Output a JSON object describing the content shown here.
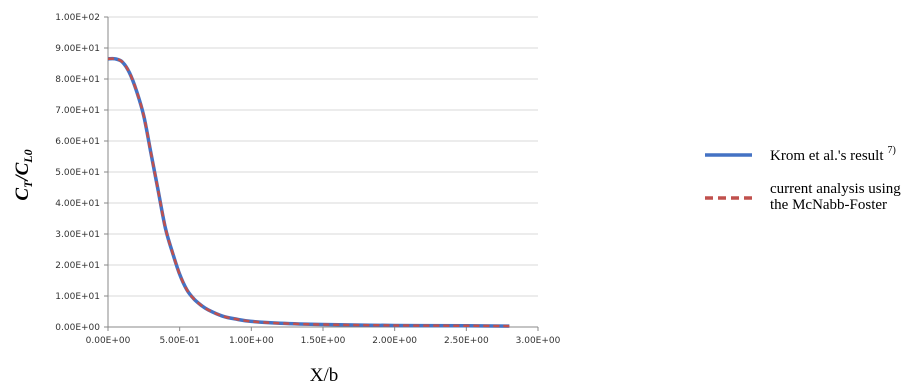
{
  "chart_data": {
    "type": "line",
    "xlabel": "X/b",
    "ylabel": "C_T/C_L0",
    "ylabel_parts": {
      "main": "C",
      "sub1": "T",
      "slash": "/C",
      "sub2": "L0"
    },
    "xlim": [
      0,
      3.0
    ],
    "ylim": [
      0,
      100
    ],
    "x_ticks": [
      0,
      0.5,
      1.0,
      1.5,
      2.0,
      2.5,
      3.0
    ],
    "x_tick_labels": [
      "0.00E+00",
      "5.00E-01",
      "1.00E+00",
      "1.50E+00",
      "2.00E+00",
      "2.50E+00",
      "3.00E+00"
    ],
    "y_ticks": [
      0,
      10,
      20,
      30,
      40,
      50,
      60,
      70,
      80,
      90,
      100
    ],
    "y_tick_labels": [
      "0.00E+00",
      "1.00E+01",
      "2.00E+01",
      "3.00E+01",
      "4.00E+01",
      "5.00E+01",
      "6.00E+01",
      "7.00E+01",
      "8.00E+01",
      "9.00E+01",
      "1.00E+02"
    ],
    "grid": "horizontal",
    "legend_position": "right",
    "series": [
      {
        "name": "Krom et al.'s result",
        "name_superscript": "7)",
        "style": "solid",
        "color": "#4472C4",
        "x": [
          0,
          0.05,
          0.1,
          0.15,
          0.2,
          0.25,
          0.3,
          0.35,
          0.4,
          0.45,
          0.5,
          0.55,
          0.6,
          0.65,
          0.7,
          0.8,
          0.9,
          1.0,
          1.2,
          1.5,
          2.0,
          2.5,
          2.8
        ],
        "y": [
          86.5,
          86.5,
          85.5,
          82,
          76,
          68,
          56,
          44,
          32,
          24,
          17,
          12,
          9,
          7,
          5.5,
          3.5,
          2.5,
          1.8,
          1.2,
          0.8,
          0.5,
          0.4,
          0.3
        ]
      },
      {
        "name": "current analysis using the McNabb-Foster",
        "name_lines": [
          "current analysis using",
          "the McNabb-Foster"
        ],
        "style": "dashed",
        "color": "#C0504D",
        "x": [
          0,
          0.05,
          0.1,
          0.15,
          0.2,
          0.25,
          0.3,
          0.35,
          0.4,
          0.45,
          0.5,
          0.55,
          0.6,
          0.65,
          0.7,
          0.8,
          0.9,
          1.0,
          1.2,
          1.5,
          2.0,
          2.5,
          2.8
        ],
        "y": [
          86.5,
          86.5,
          85.5,
          82,
          76,
          68,
          56,
          44,
          32,
          24,
          17,
          12,
          9,
          7,
          5.5,
          3.5,
          2.5,
          1.8,
          1.2,
          0.8,
          0.5,
          0.4,
          0.3
        ]
      }
    ]
  }
}
